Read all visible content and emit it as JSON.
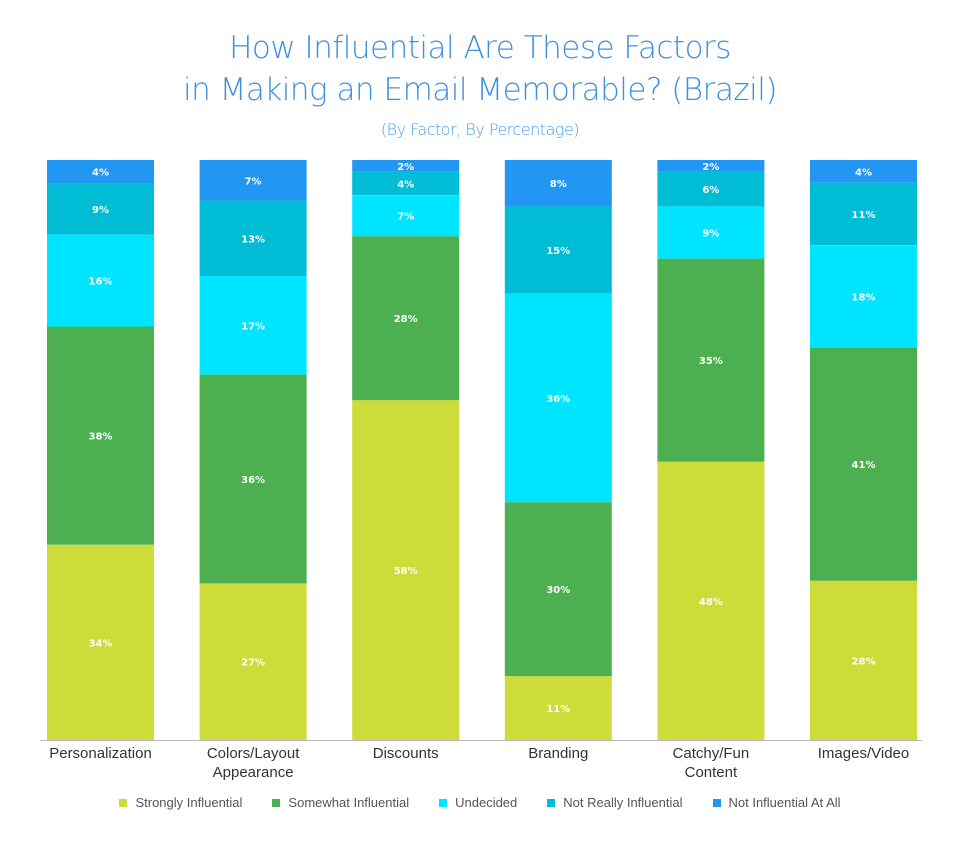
{
  "chart_data": {
    "type": "bar",
    "stacked": true,
    "title": "How Influential Are These Factors",
    "title_line2": "in Making an Email Memorable? (Brazil)",
    "subtitle": "(By Factor, By Percentage)",
    "xlabel": "",
    "ylabel": "",
    "categories": [
      "Personalization",
      "Colors/Layout Appearance",
      "Discounts",
      "Branding",
      "Catchy/Fun Content",
      "Images/Video"
    ],
    "category_lines": [
      [
        "Personalization"
      ],
      [
        "Colors/Layout",
        "Appearance"
      ],
      [
        "Discounts"
      ],
      [
        "Branding"
      ],
      [
        "Catchy/Fun",
        "Content"
      ],
      [
        "Images/Video"
      ]
    ],
    "series": [
      {
        "name": "Strongly Influential",
        "color": "#cddc39",
        "values": [
          34,
          27,
          58,
          11,
          48,
          28
        ]
      },
      {
        "name": "Somewhat Influential",
        "color": "#4caf50",
        "values": [
          38,
          36,
          28,
          30,
          35,
          41
        ]
      },
      {
        "name": "Undecided",
        "color": "#00e5ff",
        "values": [
          16,
          17,
          7,
          36,
          9,
          18
        ]
      },
      {
        "name": "Not Really Influential",
        "color": "#00bcd4",
        "values": [
          9,
          13,
          4,
          15,
          6,
          11
        ]
      },
      {
        "name": "Not Influential At All",
        "color": "#2196f3",
        "values": [
          4,
          7,
          2,
          8,
          2,
          4
        ]
      }
    ],
    "value_suffix": "%",
    "grid": false,
    "legend_position": "bottom"
  }
}
